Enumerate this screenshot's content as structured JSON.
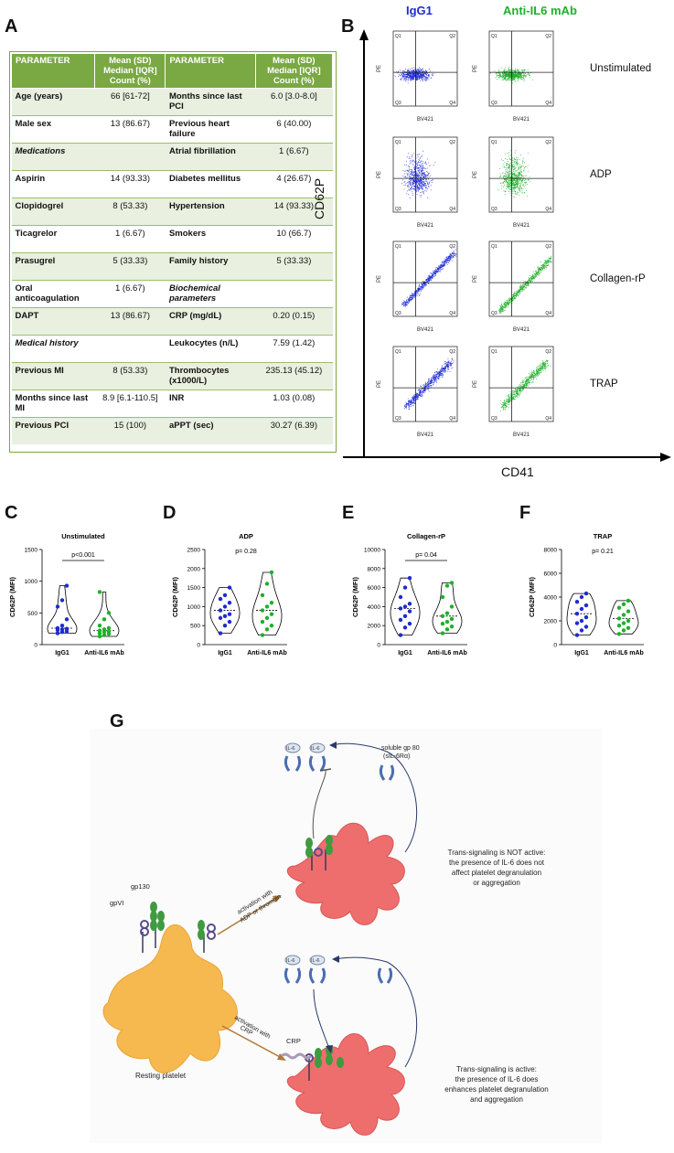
{
  "panels": {
    "a": "A",
    "b": "B",
    "c": "C",
    "d": "D",
    "e": "E",
    "f": "F",
    "g": "G"
  },
  "table": {
    "header": [
      "PARAMETER",
      "Mean (SD)\nMedian [IQR]\nCount (%)",
      "PARAMETER",
      "Mean (SD)\nMedian [IQR]\nCount (%)"
    ],
    "header_lines": [
      "Mean (SD)",
      "Median [IQR]",
      "Count (%)"
    ],
    "rows": [
      {
        "p1": "Age (years)",
        "v1": "66 [61-72]",
        "p2": "Months since last PCI",
        "v2": "6.0 [3.0-8.0]"
      },
      {
        "p1": "Male sex",
        "v1": "13 (86.67)",
        "p2": "Previous heart failure",
        "v2": "6 (40.00)"
      },
      {
        "p1": "Medications",
        "v1": "",
        "p2": "Atrial fibrillation",
        "v2": "1 (6.67)",
        "i1": true
      },
      {
        "p1": "Aspirin",
        "v1": "14 (93.33)",
        "p2": "Diabetes mellitus",
        "v2": "4 (26.67)"
      },
      {
        "p1": "Clopidogrel",
        "v1": "8 (53.33)",
        "p2": "Hypertension",
        "v2": "14 (93.33)"
      },
      {
        "p1": "Ticagrelor",
        "v1": "1 (6.67)",
        "p2": "Smokers",
        "v2": "10 (66.7)"
      },
      {
        "p1": "Prasugrel",
        "v1": "5 (33.33)",
        "p2": "Family history",
        "v2": "5 (33.33)"
      },
      {
        "p1": "Oral anticoagulation",
        "v1": "1 (6.67)",
        "p2": "Biochemical parameters",
        "v2": "",
        "i2": true
      },
      {
        "p1": "DAPT",
        "v1": "13 (86.67)",
        "p2": "CRP (mg/dL)",
        "v2": "0.20 (0.15)"
      },
      {
        "p1": "Medical history",
        "v1": "",
        "p2": "Leukocytes (n/L)",
        "v2": "7.59 (1.42)",
        "i1": true
      },
      {
        "p1": "Previous MI",
        "v1": "8 (53.33)",
        "p2": "Thrombocytes (x1000/L)",
        "v2": "235.13 (45.12)"
      },
      {
        "p1": "Months since last MI",
        "v1": "8.9 [6.1-110.5]",
        "p2": "INR",
        "v2": "1.03 (0.08)"
      },
      {
        "p1": "Previous PCI",
        "v1": "15 (100)",
        "p2": "aPPT (sec)",
        "v2": "30.27 (6.39)"
      }
    ]
  },
  "flow": {
    "col1": "IgG1",
    "col2": "Anti-IL6 mAb",
    "col1_color": "#1f2bd1",
    "col2_color": "#1fb02a",
    "rows": [
      "Unstimulated",
      "ADP",
      "Collagen-rP",
      "TRAP"
    ],
    "yaxis": "CD62P",
    "xaxis": "CD41",
    "ylabel": "PE",
    "xlabel": "BV421",
    "quads": [
      "Q1",
      "Q2",
      "Q3",
      "Q4"
    ]
  },
  "violins": [
    {
      "title": "Unstimulated",
      "ylabel": "CD62P (MFI)",
      "ticks": [
        "0",
        "500",
        "1000",
        "1500"
      ],
      "ymax": 1500,
      "p": "p<0.001",
      "bar": true,
      "groups": [
        {
          "name": "IgG1",
          "color": "#1f2bd1",
          "vals": [
            180,
            200,
            210,
            230,
            240,
            250,
            260,
            300,
            400,
            600,
            700,
            930
          ]
        },
        {
          "name": "Anti-IL6 mAb",
          "color": "#1fb02a",
          "vals": [
            130,
            150,
            170,
            180,
            200,
            210,
            220,
            240,
            260,
            300,
            400,
            500,
            830
          ]
        }
      ]
    },
    {
      "title": "ADP",
      "ylabel": "CD62P (MFI)",
      "ticks": [
        "0",
        "500",
        "1000",
        "1500",
        "2000",
        "2500"
      ],
      "ymax": 2500,
      "p": "p= 0.28",
      "bar": false,
      "groups": [
        {
          "name": "IgG1",
          "color": "#1f2bd1",
          "vals": [
            300,
            500,
            600,
            700,
            750,
            800,
            900,
            1000,
            1100,
            1200,
            1300,
            1500
          ]
        },
        {
          "name": "Anti-IL6 mAb",
          "color": "#1fb02a",
          "vals": [
            250,
            400,
            500,
            600,
            700,
            800,
            900,
            1000,
            1100,
            1300,
            1600,
            1900
          ]
        }
      ]
    },
    {
      "title": "Collagen-rP",
      "ylabel": "CD62P (MFI)",
      "ticks": [
        "0",
        "2000",
        "4000",
        "6000",
        "8000",
        "10000"
      ],
      "ymax": 10000,
      "p": "p= 0.04",
      "bar": true,
      "groups": [
        {
          "name": "IgG1",
          "color": "#1f2bd1",
          "vals": [
            1000,
            1800,
            2200,
            2600,
            3000,
            3500,
            3800,
            4000,
            4300,
            5000,
            6000,
            7000
          ]
        },
        {
          "name": "Anti-IL6 mAb",
          "color": "#1fb02a",
          "vals": [
            1200,
            1600,
            1900,
            2200,
            2400,
            2700,
            3000,
            3300,
            4000,
            5000,
            6200,
            6500
          ]
        }
      ]
    },
    {
      "title": "TRAP",
      "ylabel": "CD62P (MFI)",
      "ticks": [
        "0",
        "2000",
        "4000",
        "6000",
        "8000"
      ],
      "ymax": 8000,
      "p": "p= 0.21",
      "bar": false,
      "groups": [
        {
          "name": "IgG1",
          "color": "#1f2bd1",
          "vals": [
            800,
            1200,
            1500,
            1800,
            2000,
            2300,
            2600,
            3000,
            3300,
            3600,
            4000,
            4300
          ]
        },
        {
          "name": "Anti-IL6 mAb",
          "color": "#1fb02a",
          "vals": [
            900,
            1200,
            1400,
            1600,
            1800,
            2000,
            2200,
            2500,
            2800,
            3100,
            3400,
            3700
          ]
        }
      ]
    }
  ],
  "diagram": {
    "il6a": "IL-6",
    "il6b": "IL-6",
    "il6c": "IL-6",
    "il6d": "IL-6",
    "soluble": "soluble gp 80",
    "soluble2": "(sIL-6Rα)",
    "gp130": "gp130",
    "gpvi": "gpVI",
    "crp": "CRP",
    "act1a": "activation with",
    "act1b": "ADP or thrombin",
    "act2a": "activation with",
    "act2b": "CRP",
    "resting": "Resting platelet",
    "t1": [
      "Trans-signaling is NOT active:",
      "the presence of IL-6 does not",
      "affect platelet degranulation",
      "or aggregation"
    ],
    "t2": [
      "Trans-signaling is active:",
      "the presence of IL-6 does",
      "enhances platelet degranulation",
      "and aggregation"
    ]
  }
}
